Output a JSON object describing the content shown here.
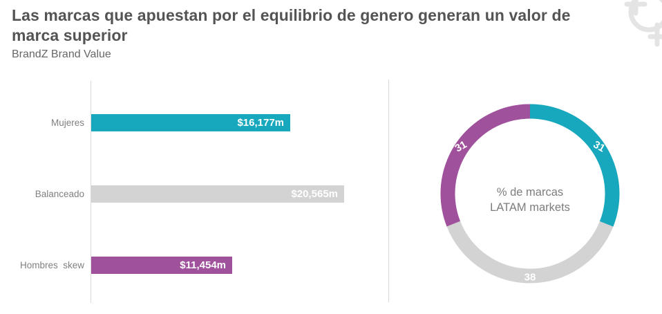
{
  "header": {
    "title": "Las marcas que apuestan por el equilibrio de genero generan un valor de marca superior",
    "subtitle": "BrandZ Brand Value"
  },
  "watermark": {
    "icon": "gender-symbols-icon"
  },
  "colors": {
    "teal": "#18a8be",
    "gray": "#d3d3d3",
    "purple": "#9f519b",
    "title_text": "#545454",
    "category_text": "#808080",
    "value_text": "#ffffff",
    "axis_line": "#d9d9d9"
  },
  "chart_data": [
    {
      "type": "bar",
      "orientation": "horizontal",
      "title": "BrandZ Brand Value",
      "categories": [
        "Mujeres",
        "Balanceado",
        "Hombres  skew"
      ],
      "values": [
        16177,
        20565,
        11454
      ],
      "value_labels": [
        "$16,177m",
        "$20,565m",
        "$11,454m"
      ],
      "bar_colors": [
        "#18a8be",
        "#d3d3d3",
        "#9f519b"
      ],
      "xlabel": "",
      "ylabel": "",
      "grid": "off",
      "axis_style": "left vertical baseline only, no tick labels",
      "value_label_position": "inside-end, white bold"
    },
    {
      "type": "pie",
      "subtype": "donut",
      "start_angle_deg": 0,
      "direction": "clockwise",
      "segments": [
        {
          "label": "Mujeres",
          "value": 31,
          "color": "#18a8be"
        },
        {
          "label": "Balanceado",
          "value": 38,
          "color": "#d3d3d3"
        },
        {
          "label": "Hombres skew",
          "value": 31,
          "color": "#9f519b"
        }
      ],
      "center_label_line1": "% de marcas",
      "center_label_line2": "LATAM markets",
      "legend": "none, values labeled on ring in white"
    }
  ]
}
